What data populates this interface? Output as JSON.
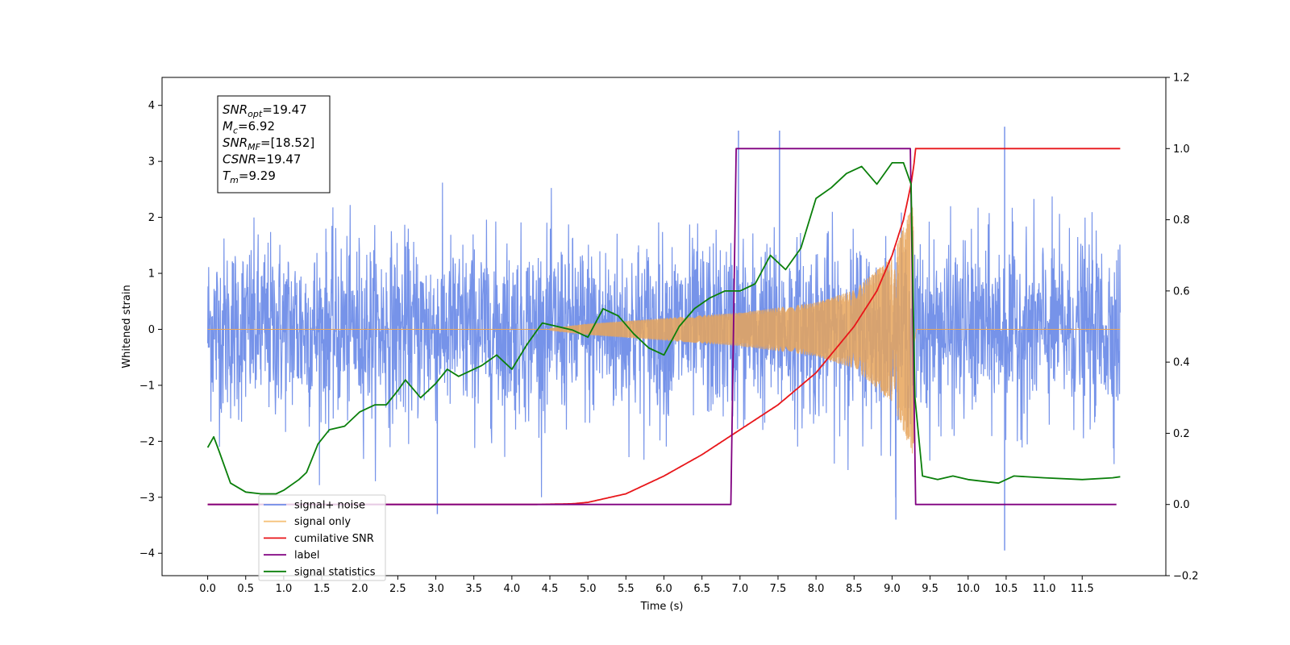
{
  "chart_data": {
    "type": "line",
    "xlabel": "Time (s)",
    "ylabel": "Whitened strain",
    "xlim": [
      -0.6,
      12.6
    ],
    "ylim": [
      -4.4,
      4.5
    ],
    "y2lim": [
      -0.2,
      1.2
    ],
    "xticks": [
      "0.0",
      "0.5",
      "1.0",
      "1.5",
      "2.0",
      "2.5",
      "3.0",
      "3.5",
      "4.0",
      "4.5",
      "5.0",
      "5.5",
      "6.0",
      "6.5",
      "7.0",
      "7.5",
      "8.0",
      "8.5",
      "9.0",
      "9.5",
      "10.0",
      "10.5",
      "11.0",
      "11.5"
    ],
    "yticks": [
      "4",
      "3",
      "2",
      "1",
      "0",
      "−1",
      "−2",
      "−3",
      "−4"
    ],
    "y2ticks": [
      "1.2",
      "1.0",
      "0.8",
      "0.6",
      "0.4",
      "0.2",
      "0.0",
      "−0.2"
    ],
    "grid": false,
    "legend_placement": "lower-left",
    "annotation": [
      {
        "name": "SNR",
        "sub": "opt",
        "value": "=19.47"
      },
      {
        "name": "M",
        "sub": "c",
        "value": "=6.92"
      },
      {
        "name": "SNR",
        "sub": "MF",
        "value": "=[18.52]"
      },
      {
        "name": "CSNR",
        "sub": "",
        "value": "=19.47"
      },
      {
        "name": "T",
        "sub": "m",
        "value": "=9.29"
      }
    ],
    "series": [
      {
        "name": "signal+ noise",
        "color": "#6f8de8",
        "axis": "left",
        "x_range": [
          0.0,
          12.0
        ],
        "amplitude_sd": 0.8,
        "notable_spikes": [
          [
            3.02,
            -3.3
          ],
          [
            9.05,
            -3.4
          ],
          [
            10.48,
            -3.95
          ],
          [
            10.48,
            3.62
          ],
          [
            6.98,
            3.55
          ],
          [
            7.52,
            3.55
          ]
        ]
      },
      {
        "name": "signal only",
        "color": "#e8a55a",
        "axis": "left",
        "chirp_start": 4.5,
        "merger_time": 9.29,
        "envelope": [
          [
            4.5,
            0.02
          ],
          [
            5.0,
            0.1
          ],
          [
            6.0,
            0.2
          ],
          [
            7.0,
            0.3
          ],
          [
            8.0,
            0.48
          ],
          [
            8.5,
            0.7
          ],
          [
            9.0,
            1.3
          ],
          [
            9.2,
            2.0
          ],
          [
            9.29,
            2.3
          ],
          [
            9.32,
            0.0
          ]
        ]
      },
      {
        "name": "cumilative SNR",
        "color": "#e8161a",
        "axis": "right",
        "points": [
          [
            0.0,
            0.0
          ],
          [
            4.3,
            0.0
          ],
          [
            4.8,
            0.002
          ],
          [
            5.0,
            0.006
          ],
          [
            5.5,
            0.03
          ],
          [
            6.0,
            0.08
          ],
          [
            6.5,
            0.14
          ],
          [
            7.0,
            0.21
          ],
          [
            7.5,
            0.28
          ],
          [
            8.0,
            0.37
          ],
          [
            8.5,
            0.5
          ],
          [
            8.8,
            0.6
          ],
          [
            9.0,
            0.7
          ],
          [
            9.15,
            0.8
          ],
          [
            9.25,
            0.9
          ],
          [
            9.29,
            0.96
          ],
          [
            9.31,
            1.0
          ],
          [
            12.0,
            1.0
          ]
        ]
      },
      {
        "name": "label",
        "color": "#800080",
        "axis": "right",
        "points": [
          [
            0.0,
            0.0
          ],
          [
            6.88,
            0.0
          ],
          [
            6.95,
            1.0
          ],
          [
            9.24,
            1.0
          ],
          [
            9.31,
            0.0
          ],
          [
            11.95,
            0.0
          ]
        ]
      },
      {
        "name": "signal statistics",
        "color": "#0a7f0a",
        "axis": "right",
        "points": [
          [
            0.0,
            0.16
          ],
          [
            0.08,
            0.19
          ],
          [
            0.15,
            0.15
          ],
          [
            0.3,
            0.06
          ],
          [
            0.5,
            0.035
          ],
          [
            0.7,
            0.03
          ],
          [
            0.9,
            0.03
          ],
          [
            1.0,
            0.04
          ],
          [
            1.2,
            0.07
          ],
          [
            1.3,
            0.09
          ],
          [
            1.45,
            0.17
          ],
          [
            1.6,
            0.21
          ],
          [
            1.8,
            0.22
          ],
          [
            2.0,
            0.26
          ],
          [
            2.2,
            0.28
          ],
          [
            2.35,
            0.28
          ],
          [
            2.5,
            0.32
          ],
          [
            2.6,
            0.35
          ],
          [
            2.8,
            0.3
          ],
          [
            3.0,
            0.34
          ],
          [
            3.15,
            0.38
          ],
          [
            3.3,
            0.36
          ],
          [
            3.6,
            0.39
          ],
          [
            3.8,
            0.42
          ],
          [
            4.0,
            0.38
          ],
          [
            4.2,
            0.45
          ],
          [
            4.4,
            0.51
          ],
          [
            4.6,
            0.5
          ],
          [
            4.8,
            0.49
          ],
          [
            5.0,
            0.47
          ],
          [
            5.2,
            0.55
          ],
          [
            5.4,
            0.53
          ],
          [
            5.6,
            0.48
          ],
          [
            5.8,
            0.44
          ],
          [
            6.0,
            0.42
          ],
          [
            6.2,
            0.5
          ],
          [
            6.4,
            0.55
          ],
          [
            6.6,
            0.58
          ],
          [
            6.8,
            0.6
          ],
          [
            7.0,
            0.6
          ],
          [
            7.2,
            0.62
          ],
          [
            7.4,
            0.7
          ],
          [
            7.6,
            0.66
          ],
          [
            7.8,
            0.72
          ],
          [
            8.0,
            0.86
          ],
          [
            8.2,
            0.89
          ],
          [
            8.4,
            0.93
          ],
          [
            8.6,
            0.95
          ],
          [
            8.8,
            0.9
          ],
          [
            9.0,
            0.96
          ],
          [
            9.15,
            0.96
          ],
          [
            9.25,
            0.9
          ],
          [
            9.3,
            0.3
          ],
          [
            9.4,
            0.08
          ],
          [
            9.6,
            0.07
          ],
          [
            9.8,
            0.08
          ],
          [
            10.0,
            0.07
          ],
          [
            10.4,
            0.06
          ],
          [
            10.6,
            0.08
          ],
          [
            11.0,
            0.075
          ],
          [
            11.5,
            0.07
          ],
          [
            11.9,
            0.075
          ],
          [
            12.0,
            0.078
          ]
        ]
      }
    ],
    "legend": [
      {
        "label": "signal+ noise",
        "color": "#6f8de8"
      },
      {
        "label": "signal only",
        "color": "#f5c27a"
      },
      {
        "label": "cumilative SNR",
        "color": "#e8161a"
      },
      {
        "label": "label",
        "color": "#800080"
      },
      {
        "label": "signal statistics",
        "color": "#0a7f0a"
      }
    ]
  }
}
